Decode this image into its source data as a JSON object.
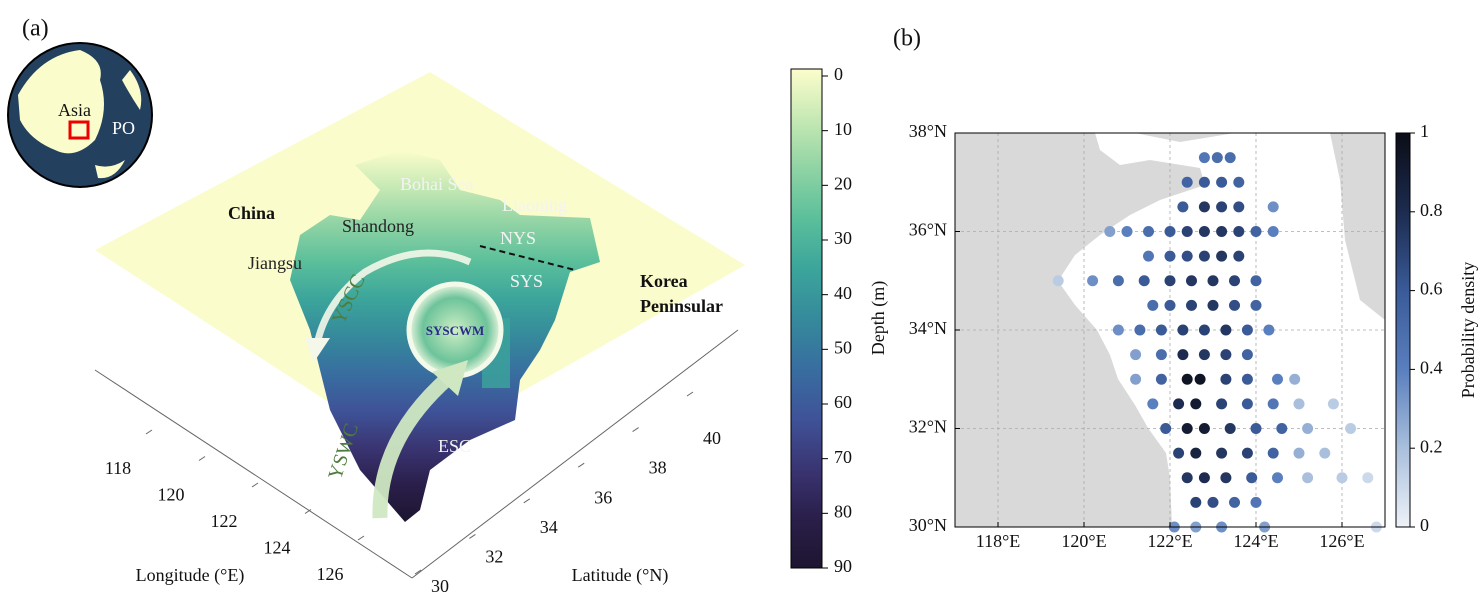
{
  "chart_data": [
    {
      "type": "surface3d",
      "panel_label": "(a)",
      "annotations": [
        "Asia",
        "PO",
        "China",
        "Bohai Sea",
        "Liaoning",
        "Shandong",
        "NYS",
        "Jiangsu",
        "YSCC",
        "SYS",
        "Korea",
        "Peninsular",
        "SYSCWM",
        "YSWC",
        "ESC"
      ],
      "xlabel": "Longitude (°E)",
      "ylabel": "Latitude (°N)",
      "xlim": [
        118,
        126
      ],
      "xticks": [
        118,
        120,
        122,
        124,
        126
      ],
      "ylim": [
        30,
        40
      ],
      "yticks": [
        30,
        32,
        34,
        36,
        38,
        40
      ],
      "colorbar": {
        "label": "Depth (m)",
        "lim": [
          0,
          90
        ],
        "ticks": [
          0,
          10,
          20,
          30,
          40,
          50,
          60,
          70,
          80,
          90
        ],
        "colors": [
          "#fcfdcc",
          "#c6e9b4",
          "#8fd3a4",
          "#5bbf9b",
          "#3ca59b",
          "#358a9b",
          "#386ea0",
          "#3f5398",
          "#3a3573",
          "#2a1f4a",
          "#1d1530"
        ]
      }
    },
    {
      "type": "scatter",
      "panel_label": "(b)",
      "x": [
        122.8,
        123.1,
        123.4,
        122.4,
        122.8,
        123.2,
        123.6,
        122.3,
        122.8,
        123.2,
        123.6,
        124.4,
        120.6,
        121.0,
        121.5,
        122.0,
        122.4,
        122.8,
        123.2,
        123.6,
        124.0,
        124.4,
        121.5,
        122.0,
        122.4,
        122.8,
        123.2,
        123.6,
        119.4,
        120.2,
        120.8,
        121.4,
        122.0,
        122.5,
        123.0,
        123.5,
        124.0,
        121.6,
        122.0,
        122.5,
        123.0,
        123.5,
        124.0,
        120.8,
        121.3,
        121.8,
        122.3,
        122.8,
        123.3,
        123.8,
        124.3,
        121.2,
        121.8,
        122.3,
        122.8,
        123.3,
        123.8,
        121.2,
        121.8,
        122.4,
        122.7,
        123.3,
        123.8,
        124.5,
        124.9,
        121.6,
        122.2,
        122.6,
        123.2,
        123.8,
        124.4,
        125.0,
        125.8,
        121.9,
        122.4,
        122.8,
        123.4,
        124.0,
        124.6,
        125.2,
        126.2,
        122.2,
        122.6,
        123.2,
        123.8,
        124.4,
        125.0,
        125.6,
        122.4,
        122.8,
        123.3,
        123.9,
        124.5,
        125.2,
        126.0,
        126.6,
        122.6,
        123.0,
        123.5,
        124.0,
        122.1,
        122.6,
        123.2,
        124.2,
        126.8
      ],
      "y": [
        37.5,
        37.5,
        37.5,
        37,
        37,
        37,
        37,
        36.5,
        36.5,
        36.5,
        36.5,
        36.5,
        36,
        36,
        36,
        36,
        36,
        36,
        36,
        36,
        36,
        36,
        35.5,
        35.5,
        35.5,
        35.5,
        35.5,
        35.5,
        35,
        35,
        35,
        35,
        35,
        35,
        35,
        35,
        35,
        34.5,
        34.5,
        34.5,
        34.5,
        34.5,
        34.5,
        34,
        34,
        34,
        34,
        34,
        34,
        34,
        34,
        33.5,
        33.5,
        33.5,
        33.5,
        33.5,
        33.5,
        33,
        33,
        33,
        33,
        33,
        33,
        33,
        33,
        32.5,
        32.5,
        32.5,
        32.5,
        32.5,
        32.5,
        32.5,
        32.5,
        32,
        32,
        32,
        32,
        32,
        32,
        32,
        32,
        31.5,
        31.5,
        31.5,
        31.5,
        31.5,
        31.5,
        31.5,
        31,
        31,
        31,
        31,
        31,
        31,
        31,
        31,
        30.5,
        30.5,
        30.5,
        30.5,
        30,
        30,
        30,
        30,
        30
      ],
      "values": [
        0.45,
        0.5,
        0.5,
        0.55,
        0.6,
        0.6,
        0.55,
        0.6,
        0.75,
        0.7,
        0.65,
        0.35,
        0.3,
        0.4,
        0.5,
        0.6,
        0.7,
        0.75,
        0.75,
        0.7,
        0.55,
        0.4,
        0.45,
        0.6,
        0.65,
        0.7,
        0.75,
        0.7,
        0.15,
        0.35,
        0.5,
        0.6,
        0.7,
        0.75,
        0.75,
        0.7,
        0.55,
        0.5,
        0.6,
        0.7,
        0.75,
        0.65,
        0.55,
        0.35,
        0.5,
        0.6,
        0.7,
        0.7,
        0.75,
        0.6,
        0.4,
        0.3,
        0.5,
        0.8,
        0.75,
        0.7,
        0.55,
        0.3,
        0.55,
        0.95,
        0.95,
        0.7,
        0.6,
        0.4,
        0.25,
        0.4,
        0.8,
        0.9,
        0.7,
        0.6,
        0.45,
        0.2,
        0.15,
        0.6,
        0.9,
        0.9,
        0.75,
        0.6,
        0.55,
        0.25,
        0.15,
        0.7,
        0.85,
        0.75,
        0.7,
        0.55,
        0.25,
        0.2,
        0.75,
        0.8,
        0.75,
        0.6,
        0.4,
        0.2,
        0.15,
        0.1,
        0.7,
        0.65,
        0.55,
        0.45,
        0.35,
        0.3,
        0.35,
        0.3,
        0.1
      ],
      "xlim": [
        117,
        127
      ],
      "xticks": [
        {
          "value": 118,
          "label": "118°E"
        },
        {
          "value": 120,
          "label": "120°E"
        },
        {
          "value": 122,
          "label": "122°E"
        },
        {
          "value": 124,
          "label": "124°E"
        },
        {
          "value": 126,
          "label": "126°E"
        }
      ],
      "ylim": [
        30,
        38
      ],
      "yticks": [
        {
          "value": 30,
          "label": "30°N"
        },
        {
          "value": 32,
          "label": "32°N"
        },
        {
          "value": 34,
          "label": "34°N"
        },
        {
          "value": 36,
          "label": "36°N"
        },
        {
          "value": 38,
          "label": "38°N"
        }
      ],
      "grid": true,
      "colorbar": {
        "label": "Probability density",
        "lim": [
          0,
          1
        ],
        "ticks": [
          0,
          0.2,
          0.4,
          0.6,
          0.8,
          1
        ],
        "colors": [
          "#eef2f8",
          "#a9bfdc",
          "#5a7fbe",
          "#3a5a98",
          "#1c2b4f",
          "#0b0d17"
        ]
      }
    }
  ]
}
